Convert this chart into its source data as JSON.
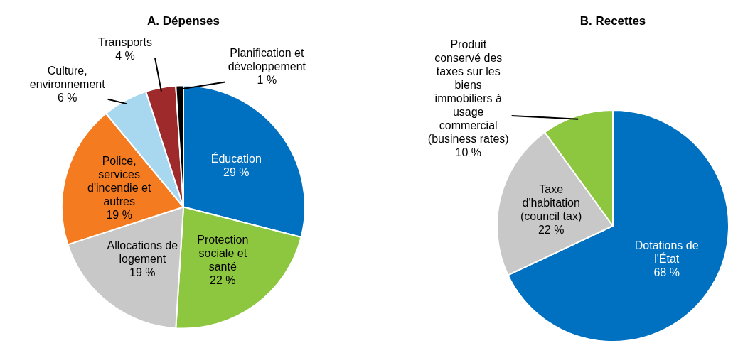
{
  "chart_data": [
    {
      "type": "pie",
      "title": "A. Dépenses",
      "categories": [
        "Éducation",
        "Protection sociale et santé",
        "Allocations de logement",
        "Police, services d'incendie et autres",
        "Culture, environnement",
        "Transports",
        "Planification et développement"
      ],
      "values": [
        29,
        22,
        19,
        19,
        6,
        4,
        1
      ],
      "value_labels": [
        "29 %",
        "22 %",
        "19 %",
        "19 %",
        "6 %",
        "4 %",
        "1 %"
      ],
      "colors": [
        "#0070c0",
        "#8dc63f",
        "#c8c8c8",
        "#f47b20",
        "#a8d8f0",
        "#9e2a2b",
        "#000000"
      ]
    },
    {
      "type": "pie",
      "title": "B. Recettes",
      "categories": [
        "Dotations de l'État",
        "Taxe d'habitation (council tax)",
        "Produit conservé des taxes sur les biens immobiliers à usage commercial (business rates)"
      ],
      "values": [
        68,
        22,
        10
      ],
      "value_labels": [
        "68 %",
        "22 %",
        "10 %"
      ],
      "colors": [
        "#0070c0",
        "#c8c8c8",
        "#8dc63f"
      ]
    }
  ]
}
